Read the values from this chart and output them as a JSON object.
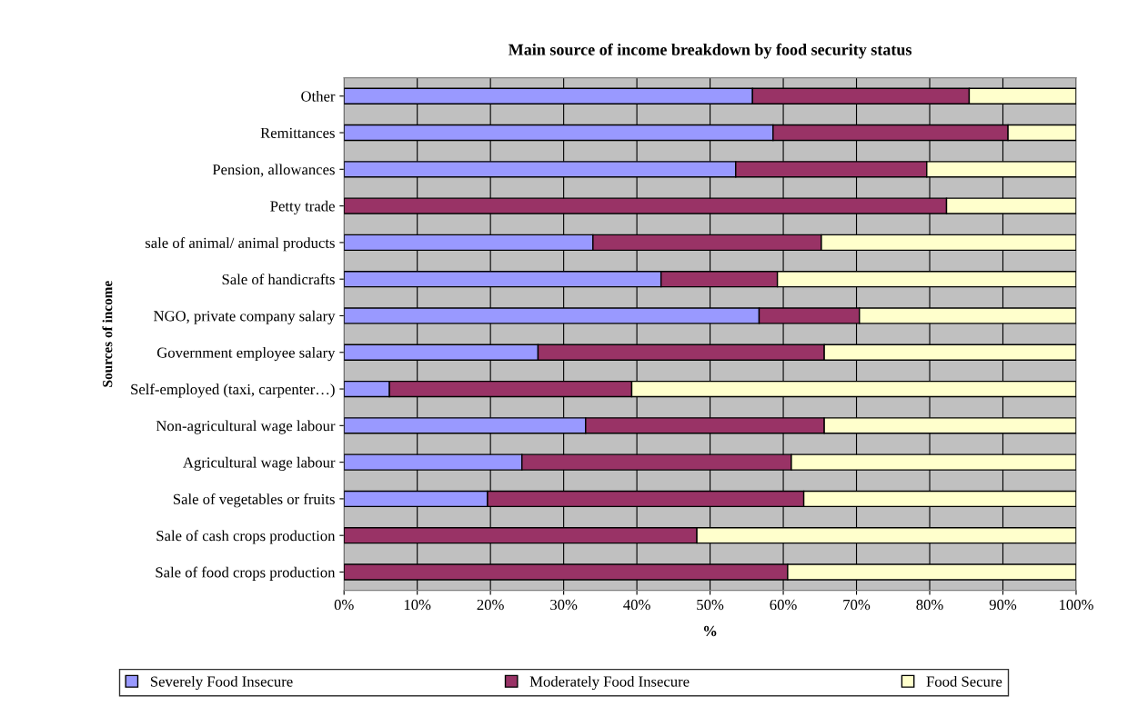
{
  "chart_data": {
    "type": "bar",
    "orientation": "horizontal",
    "stacked": true,
    "title": "Main source of income breakdown by food security status",
    "xlabel": "%",
    "ylabel": "Sources of income",
    "categories": [
      "Other",
      "Remittances",
      "Pension, allowances",
      "Petty trade",
      "sale of animal/ animal products",
      "Sale of handicrafts",
      "NGO, private company salary",
      "Government employee salary",
      "Self-employed (taxi, carpenter…)",
      "Non-agricultural wage labour",
      "Agricultural wage labour",
      "Sale of vegetables or fruits",
      "Sale of cash crops production",
      "Sale of food crops production"
    ],
    "series": [
      {
        "name": "Severely Food Insecure",
        "color": "#9999ff",
        "values": [
          55.8,
          58.6,
          53.5,
          0,
          34.0,
          43.3,
          56.7,
          26.5,
          6.2,
          33.0,
          24.3,
          19.6,
          0,
          0
        ]
      },
      {
        "name": "Moderately Food Insecure",
        "color": "#993366",
        "values": [
          29.6,
          32.1,
          26.1,
          82.3,
          31.2,
          15.9,
          13.7,
          39.1,
          33.1,
          32.6,
          36.8,
          43.2,
          48.2,
          60.6
        ]
      },
      {
        "name": "Food Secure",
        "color": "#ffffcc",
        "values": [
          14.6,
          9.3,
          20.4,
          17.7,
          34.8,
          40.8,
          29.6,
          34.4,
          60.7,
          34.4,
          38.9,
          37.2,
          51.8,
          39.4
        ]
      }
    ],
    "xlim": [
      0,
      100
    ],
    "xticks": [
      {
        "value": 0,
        "label": "0%"
      },
      {
        "value": 10,
        "label": "10%"
      },
      {
        "value": 20,
        "label": "20%"
      },
      {
        "value": 30,
        "label": "30%"
      },
      {
        "value": 40,
        "label": "40%"
      },
      {
        "value": 50,
        "label": "50%"
      },
      {
        "value": 60,
        "label": "60%"
      },
      {
        "value": 70,
        "label": "70%"
      },
      {
        "value": 80,
        "label": "80%"
      },
      {
        "value": 90,
        "label": "90%"
      },
      {
        "value": 100,
        "label": "100%"
      }
    ],
    "grid": "x",
    "legend": "bottom"
  }
}
